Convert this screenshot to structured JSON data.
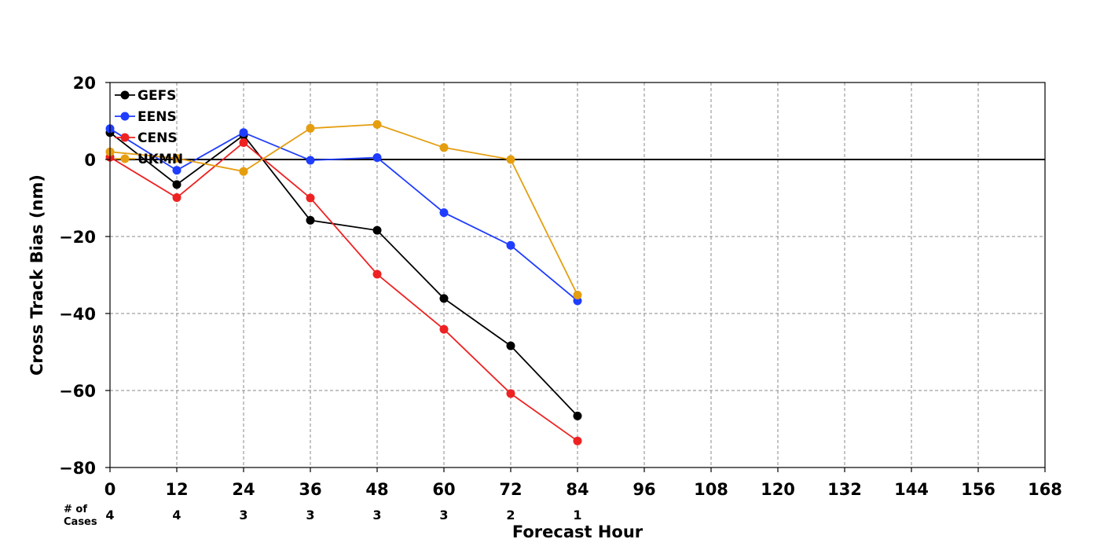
{
  "chart_data": {
    "type": "line",
    "xlabel": "Forecast Hour",
    "ylabel": "Cross Track Bias (nm)",
    "xlim": [
      0,
      168
    ],
    "ylim": [
      -80,
      20
    ],
    "x_ticks": [
      0,
      12,
      24,
      36,
      48,
      60,
      72,
      84,
      96,
      108,
      120,
      132,
      144,
      156,
      168
    ],
    "y_ticks": [
      20,
      0,
      -20,
      -40,
      -60,
      -80
    ],
    "x_tick_labels": [
      "0",
      "12",
      "24",
      "36",
      "48",
      "60",
      "72",
      "84",
      "96",
      "108",
      "120",
      "132",
      "144",
      "156",
      "168"
    ],
    "y_tick_labels": [
      "20",
      "0",
      "−20",
      "−40",
      "−60",
      "−80"
    ],
    "grid": true,
    "zero_line": true,
    "legend_position": "top-left",
    "x": [
      0,
      12,
      24,
      36,
      48,
      60,
      72,
      84
    ],
    "series": [
      {
        "name": "GEFS",
        "color": "#000000",
        "values": [
          7.0,
          -6.5,
          6.3,
          -15.8,
          -18.4,
          -36.1,
          -48.4,
          -66.6
        ]
      },
      {
        "name": "EENS",
        "color": "#1f3dff",
        "values": [
          8.0,
          -2.8,
          7.0,
          -0.2,
          0.5,
          -13.8,
          -22.3,
          -36.7
        ]
      },
      {
        "name": "CENS",
        "color": "#ee2222",
        "values": [
          0.6,
          -9.9,
          4.4,
          -10.0,
          -29.8,
          -44.1,
          -60.8,
          -73.1
        ]
      },
      {
        "name": "UKMN",
        "color": "#e59e10",
        "values": [
          2.0,
          0.3,
          -3.1,
          8.1,
          9.1,
          3.1,
          0.0,
          -35.2
        ]
      }
    ],
    "cases_title": [
      "# of",
      "Cases"
    ],
    "cases": [
      {
        "hour": 0,
        "count": "4"
      },
      {
        "hour": 12,
        "count": "4"
      },
      {
        "hour": 24,
        "count": "3"
      },
      {
        "hour": 36,
        "count": "3"
      },
      {
        "hour": 48,
        "count": "3"
      },
      {
        "hour": 60,
        "count": "3"
      },
      {
        "hour": 72,
        "count": "2"
      },
      {
        "hour": 84,
        "count": "1"
      }
    ]
  }
}
